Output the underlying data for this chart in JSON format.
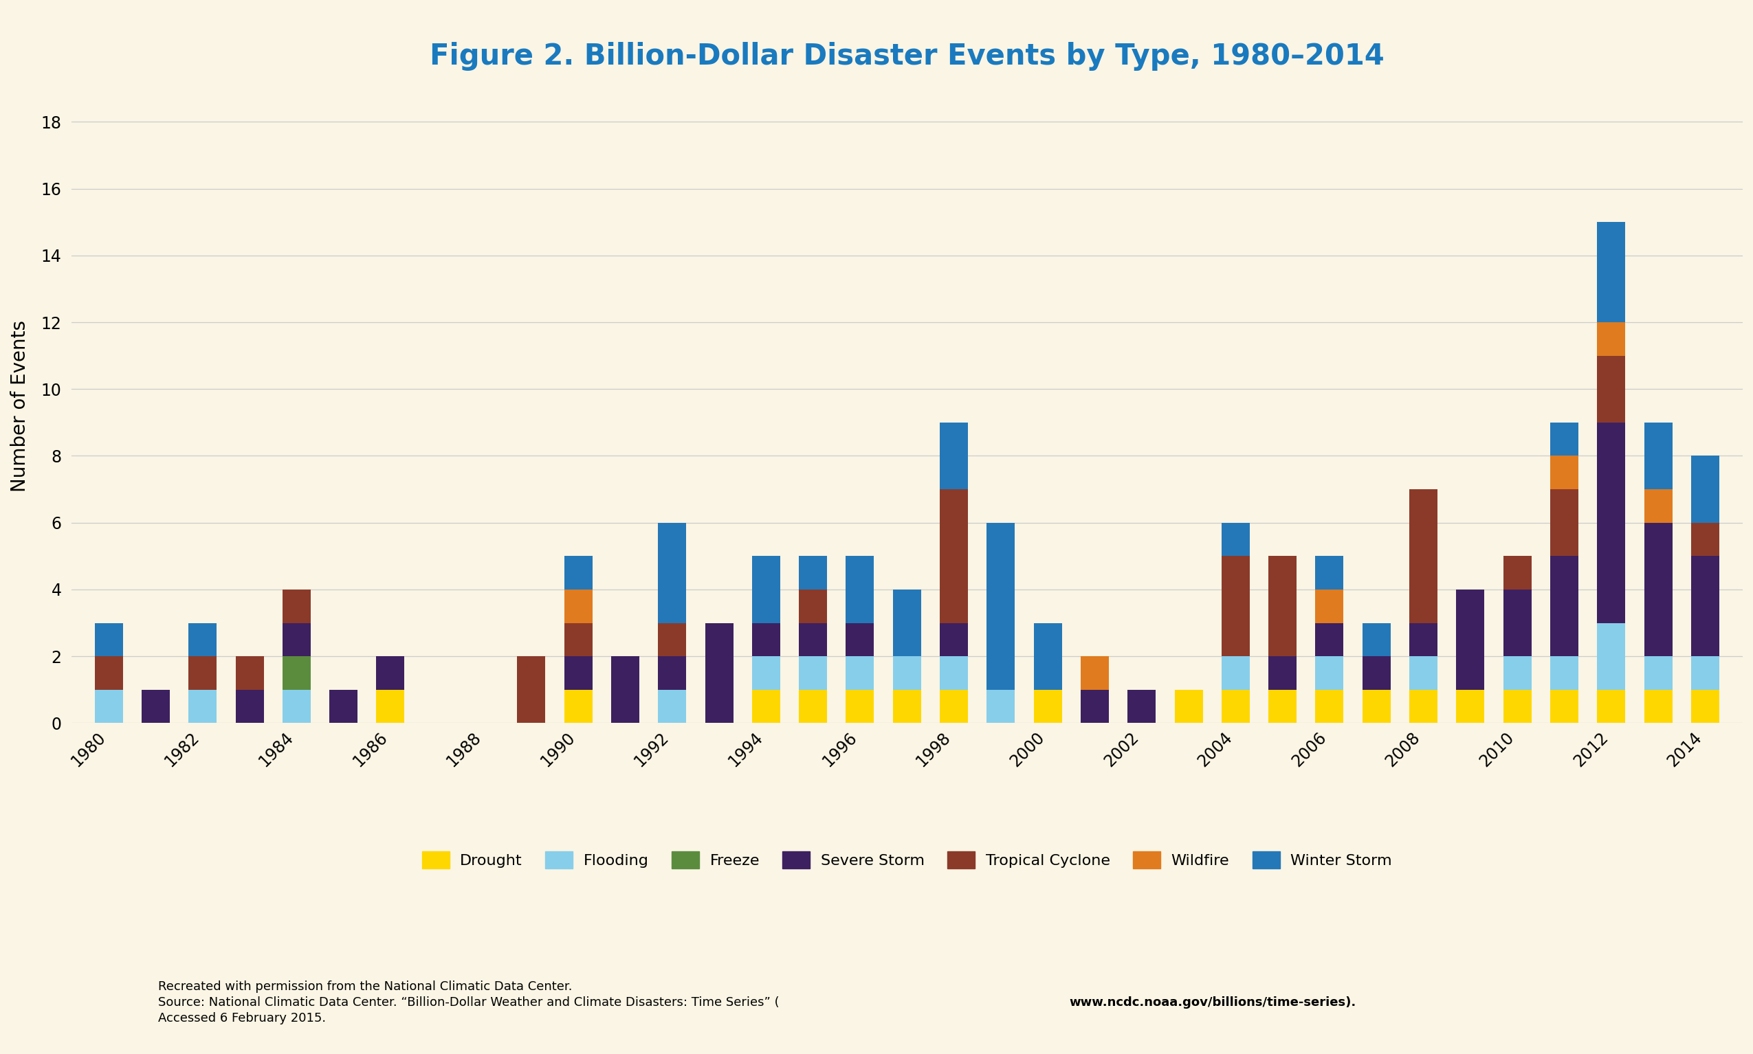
{
  "title": "Figure 2. Billion-Dollar Disaster Events by Type, 1980–2014",
  "ylabel": "Number of Events",
  "background_color": "#FAF5E4",
  "title_color": "#1a7abf",
  "title_fontsize": 30,
  "ylabel_fontsize": 20,
  "years": [
    1980,
    1981,
    1982,
    1983,
    1984,
    1985,
    1986,
    1987,
    1988,
    1989,
    1990,
    1991,
    1992,
    1993,
    1994,
    1995,
    1996,
    1997,
    1998,
    1999,
    2000,
    2001,
    2002,
    2003,
    2004,
    2005,
    2006,
    2007,
    2008,
    2009,
    2010,
    2011,
    2012,
    2013,
    2014
  ],
  "xtick_labels": [
    "1980",
    "",
    "1982",
    "",
    "1984",
    "",
    "1986",
    "",
    "1988",
    "",
    "1990",
    "",
    "1992",
    "",
    "1994",
    "",
    "1996",
    "",
    "1998",
    "",
    "2000",
    "",
    "2002",
    "",
    "2004",
    "",
    "2006",
    "",
    "2008",
    "",
    "2010",
    "",
    "2012",
    "",
    "2014"
  ],
  "categories": [
    "Drought",
    "Flooding",
    "Freeze",
    "Severe Storm",
    "Tropical Cyclone",
    "Wildfire",
    "Winter Storm"
  ],
  "colors": [
    "#FFD700",
    "#87CEEB",
    "#5B8C3E",
    "#3D2060",
    "#8B3A2A",
    "#E07B1F",
    "#2478B8"
  ],
  "data": {
    "Drought": [
      0,
      0,
      0,
      0,
      0,
      0,
      1,
      0,
      0,
      0,
      1,
      0,
      0,
      0,
      1,
      1,
      1,
      1,
      1,
      0,
      1,
      0,
      0,
      1,
      1,
      1,
      1,
      1,
      1,
      1,
      1,
      1,
      1,
      1,
      1
    ],
    "Flooding": [
      1,
      0,
      1,
      0,
      1,
      0,
      0,
      0,
      0,
      0,
      0,
      0,
      1,
      0,
      1,
      1,
      1,
      1,
      1,
      1,
      0,
      0,
      0,
      0,
      1,
      0,
      1,
      0,
      1,
      0,
      1,
      1,
      2,
      1,
      1
    ],
    "Freeze": [
      0,
      0,
      0,
      0,
      1,
      0,
      0,
      0,
      0,
      0,
      0,
      0,
      0,
      0,
      0,
      0,
      0,
      0,
      0,
      0,
      0,
      0,
      0,
      0,
      0,
      0,
      0,
      0,
      0,
      0,
      0,
      0,
      0,
      0,
      0
    ],
    "Severe Storm": [
      0,
      1,
      0,
      1,
      1,
      1,
      1,
      0,
      0,
      0,
      1,
      2,
      1,
      3,
      1,
      1,
      1,
      0,
      1,
      0,
      0,
      1,
      1,
      0,
      0,
      1,
      1,
      1,
      1,
      3,
      2,
      3,
      6,
      4,
      3
    ],
    "Tropical Cyclone": [
      1,
      0,
      1,
      1,
      1,
      0,
      0,
      0,
      0,
      2,
      1,
      0,
      1,
      0,
      0,
      1,
      0,
      0,
      4,
      0,
      0,
      0,
      0,
      0,
      3,
      3,
      0,
      0,
      4,
      0,
      1,
      2,
      2,
      0,
      1
    ],
    "Wildfire": [
      0,
      0,
      0,
      0,
      0,
      0,
      0,
      0,
      0,
      0,
      1,
      0,
      0,
      0,
      0,
      0,
      0,
      0,
      0,
      0,
      0,
      1,
      0,
      0,
      0,
      0,
      1,
      0,
      0,
      0,
      0,
      1,
      1,
      1,
      0
    ],
    "Winter Storm": [
      1,
      0,
      1,
      0,
      0,
      0,
      0,
      0,
      0,
      0,
      1,
      0,
      3,
      0,
      2,
      1,
      2,
      2,
      2,
      5,
      2,
      0,
      0,
      0,
      1,
      0,
      1,
      1,
      0,
      0,
      0,
      1,
      3,
      2,
      2
    ]
  },
  "ylim": [
    0,
    19
  ],
  "yticks": [
    0,
    2,
    4,
    6,
    8,
    10,
    12,
    14,
    16,
    18
  ],
  "footnote1": "Recreated with permission from the National Climatic Data Center.",
  "footnote2_pre": "Source: National Climatic Data Center. “Billion-Dollar Weather and Climate Disasters: Time Series” (",
  "footnote2_url": "www.ncdc.noaa.gov/billions/time-series",
  "footnote2_post": ").",
  "footnote3": "Accessed 6 February 2015.",
  "footnote_fontsize": 13
}
